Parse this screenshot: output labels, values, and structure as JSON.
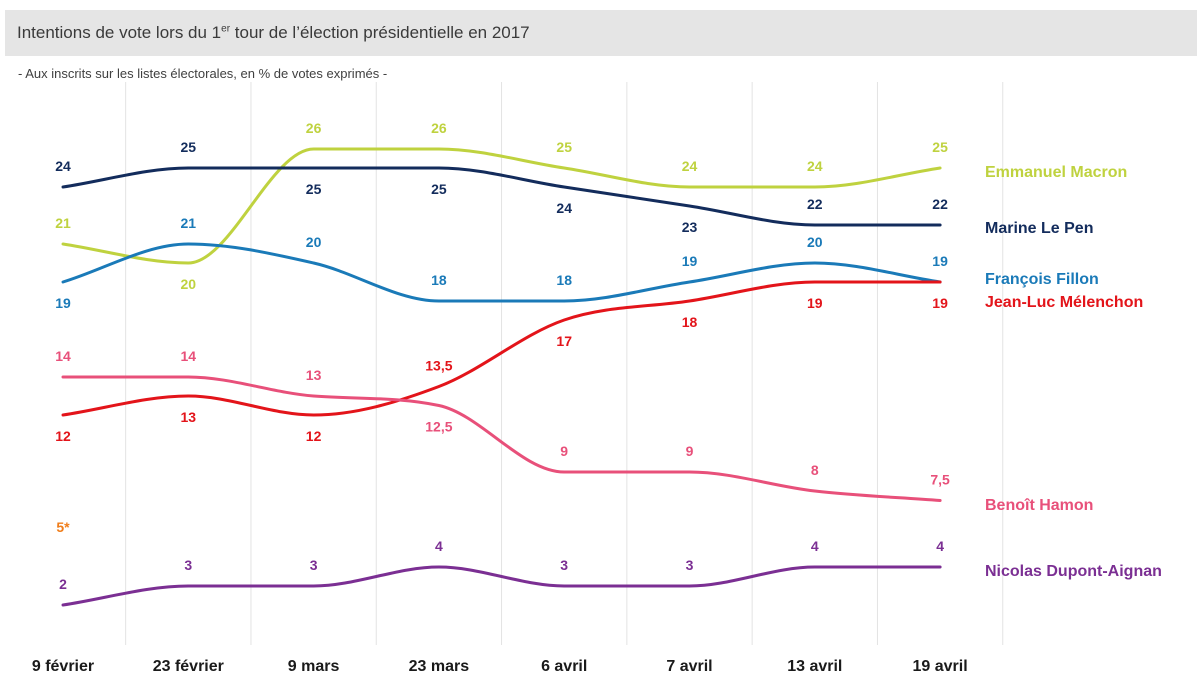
{
  "chart_data": {
    "type": "line",
    "title_main": "Intentions de vote lors du 1",
    "title_sup": "er",
    "title_rest": " tour de l’élection présidentielle en 2017",
    "subtitle": "- Aux inscrits sur les listes électorales, en % de votes  exprimés -",
    "categories": [
      "9 février",
      "23 février",
      "9 mars",
      "23 mars",
      "6 avril",
      "7 avril",
      "13 avril",
      "19 avril"
    ],
    "ylim": [
      0,
      30
    ],
    "grid": "vertical",
    "series": [
      {
        "name": "Emmanuel Macron",
        "color": "#bfd23f",
        "values": [
          21,
          20,
          26,
          26,
          25,
          24,
          24,
          25
        ],
        "labels": [
          "21",
          "20",
          "26",
          "26",
          "25",
          "24",
          "24",
          "25"
        ]
      },
      {
        "name": "Marine Le Pen",
        "color": "#132c5c",
        "values": [
          24,
          25,
          25,
          25,
          24,
          23,
          22,
          22
        ],
        "labels": [
          "24",
          "25",
          "25",
          "25",
          "24",
          "23",
          "22",
          "22"
        ]
      },
      {
        "name": "François Fillon",
        "color": "#1a7ab8",
        "values": [
          19,
          21,
          20,
          18,
          18,
          19,
          20,
          19
        ],
        "labels": [
          "19",
          "21",
          "20",
          "18",
          "18",
          "19",
          "20",
          "19"
        ]
      },
      {
        "name": "Jean-Luc Mélenchon",
        "color": "#e3141a",
        "values": [
          12,
          13,
          12,
          13.5,
          17,
          18,
          19,
          19
        ],
        "labels": [
          "12",
          "13",
          "12",
          "13,5",
          "17",
          "18",
          "19",
          "19"
        ]
      },
      {
        "name": "Benoît Hamon",
        "color": "#e8507a",
        "values": [
          14,
          14,
          13,
          12.5,
          9,
          9,
          8,
          7.5
        ],
        "labels": [
          "14",
          "14",
          "13",
          "12,5",
          "9",
          "9",
          "8",
          "7,5"
        ]
      },
      {
        "name": "Nicolas Dupont-Aignan",
        "color": "#7b2f93",
        "values": [
          2,
          3,
          3,
          4,
          3,
          3,
          4,
          4
        ],
        "labels": [
          "2",
          "3",
          "3",
          "4",
          "3",
          "3",
          "4",
          "4"
        ]
      }
    ],
    "annotations": [
      {
        "text": "5*",
        "color": "#f07d1a"
      }
    ]
  }
}
